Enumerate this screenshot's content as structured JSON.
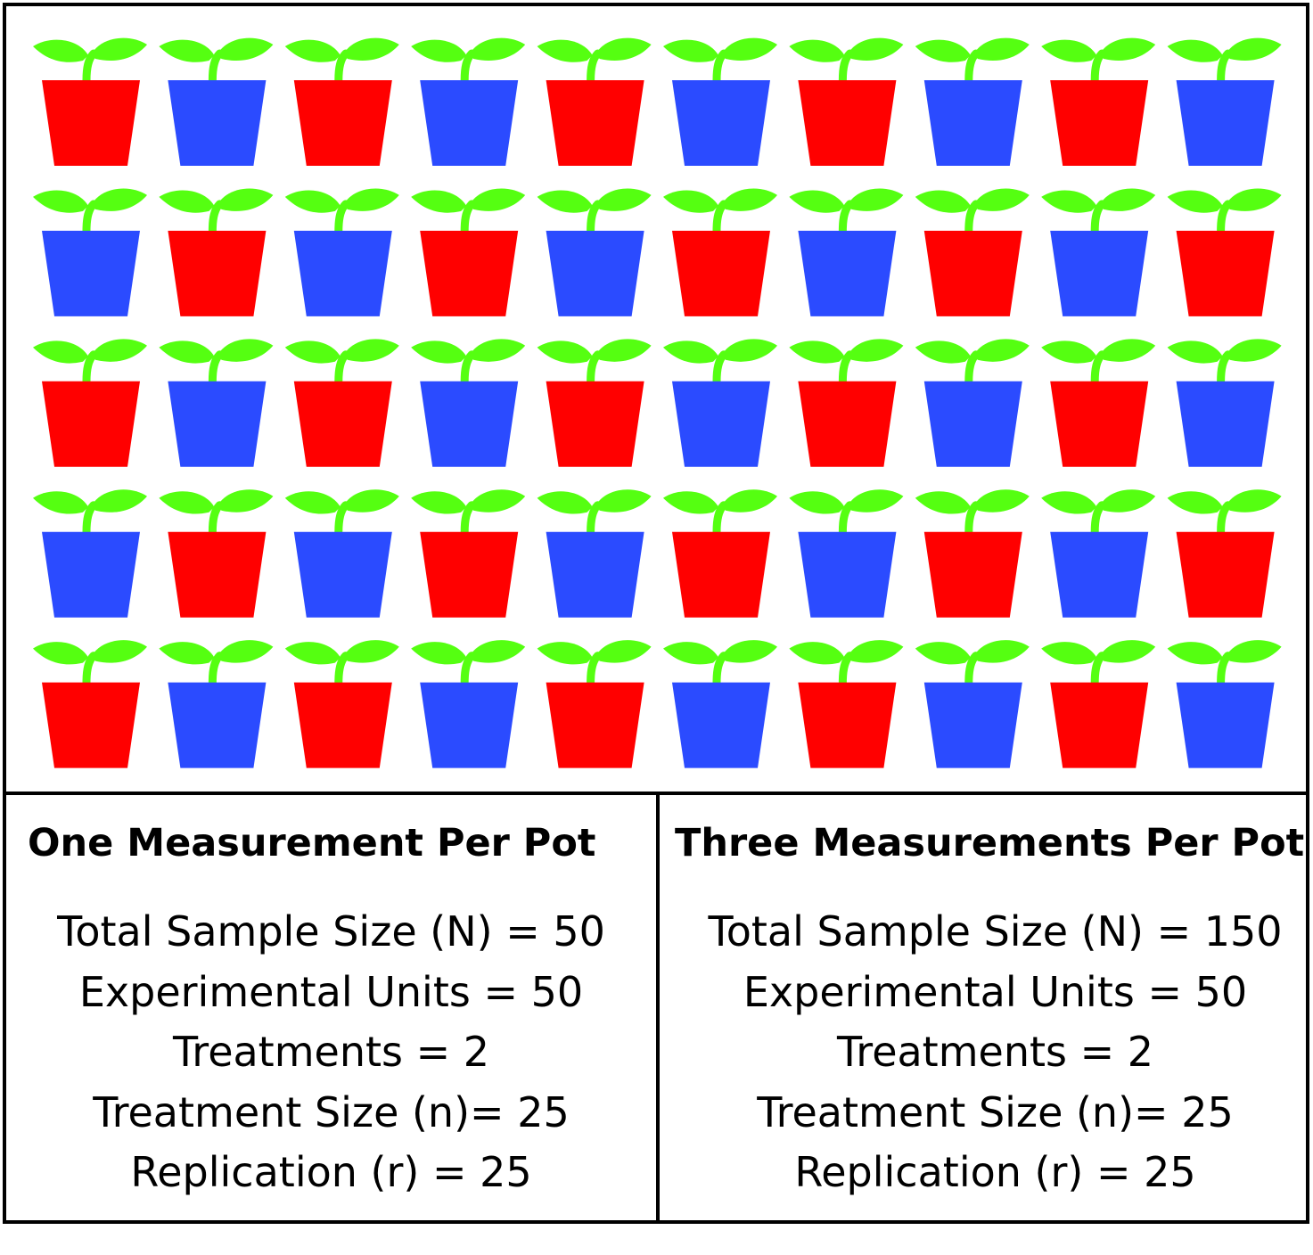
{
  "figure": {
    "pot_grid": {
      "rows": 5,
      "columns": 10,
      "total_pots": 50,
      "pattern": "checkerboard; row 1 starts red",
      "colors": {
        "treatment_a_pot": "#ff0000",
        "treatment_b_pot": "#2b4bff",
        "seedling": "#55ff11"
      }
    },
    "left_panel": {
      "title": "One Measurement Per Pot",
      "lines": [
        "Total Sample Size (N) = 50",
        "Experimental Units = 50",
        "Treatments = 2",
        "Treatment Size (n)= 25",
        "Replication (r) = 25"
      ]
    },
    "right_panel": {
      "title": "Three Measurements Per Pot",
      "lines": [
        "Total Sample Size (N) = 150",
        "Experimental Units = 50",
        "Treatments = 2",
        "Treatment Size (n)= 25",
        "Replication (r) = 25"
      ]
    }
  }
}
